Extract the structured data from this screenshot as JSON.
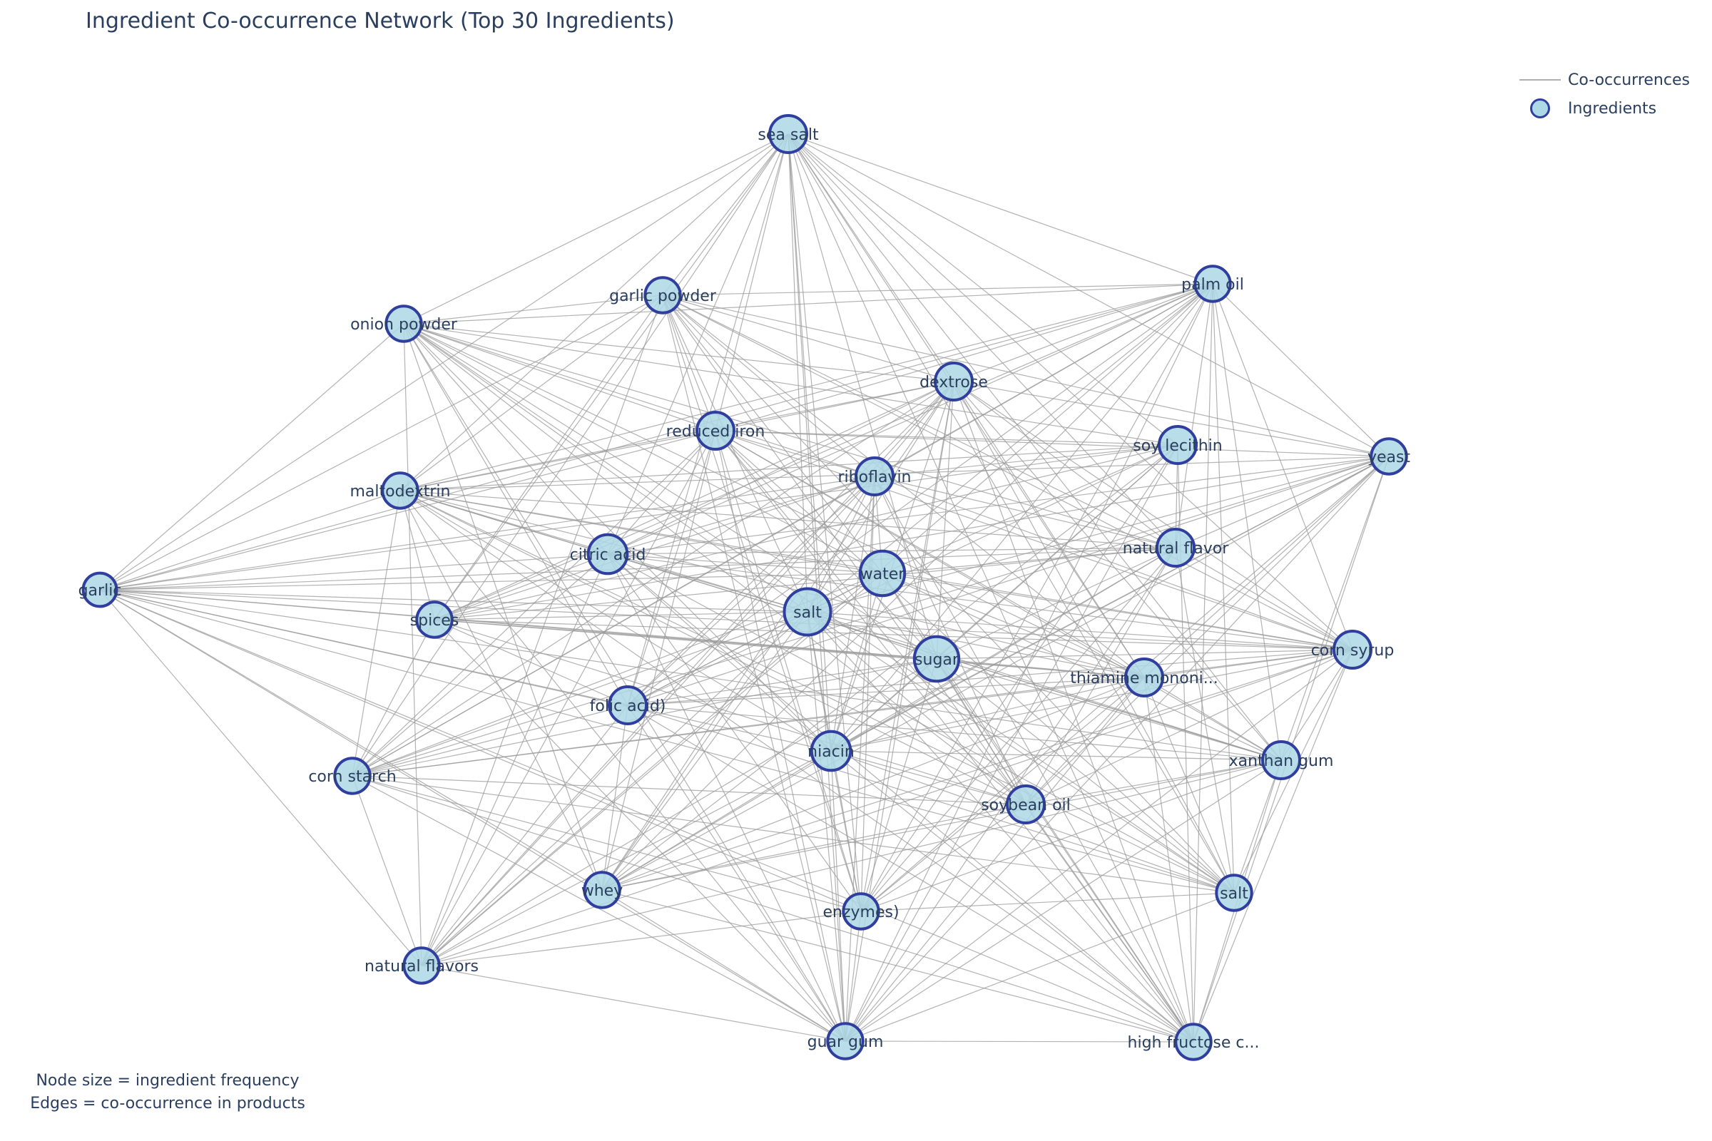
{
  "title": "Ingredient Co-occurrence Network (Top 30 Ingredients)",
  "legend": {
    "edges_label": "Co-occurrences",
    "nodes_label": "Ingredients"
  },
  "footnote": {
    "line1": "Node size = ingredient frequency",
    "line2": "Edges = co-occurrence in products"
  },
  "colors": {
    "node_fill": "#add8e6",
    "node_stroke": "#303f9f",
    "edge": "#999999",
    "text": "#2a3f5f"
  },
  "nodes": [
    {
      "id": "n1",
      "label": "sea salt",
      "weight": 1.0
    },
    {
      "id": "n2",
      "label": "palm oil",
      "weight": 0.95
    },
    {
      "id": "n3",
      "label": "garlic powder",
      "weight": 0.95
    },
    {
      "id": "n4",
      "label": "onion powder",
      "weight": 0.95
    },
    {
      "id": "n5",
      "label": "dextrose",
      "weight": 1.0
    },
    {
      "id": "n6",
      "label": "reduced iron",
      "weight": 1.0
    },
    {
      "id": "n7",
      "label": "soy lecithin",
      "weight": 1.0
    },
    {
      "id": "n8",
      "label": "yeast",
      "weight": 0.95
    },
    {
      "id": "n9",
      "label": "riboflavin",
      "weight": 1.0
    },
    {
      "id": "n10",
      "label": "maltodextrin",
      "weight": 0.95
    },
    {
      "id": "n11",
      "label": "natural flavor",
      "weight": 1.0
    },
    {
      "id": "n12",
      "label": "citric acid",
      "weight": 1.05
    },
    {
      "id": "n13",
      "label": "water",
      "weight": 1.2
    },
    {
      "id": "n14",
      "label": "garlic",
      "weight": 0.9
    },
    {
      "id": "n15",
      "label": "salt",
      "weight": 1.25
    },
    {
      "id": "n16",
      "label": "spices",
      "weight": 0.95
    },
    {
      "id": "n17",
      "label": "sugar",
      "weight": 1.2
    },
    {
      "id": "n18",
      "label": "corn syrup",
      "weight": 1.0
    },
    {
      "id": "n19",
      "label": "thiamine mononi...",
      "weight": 1.0
    },
    {
      "id": "n20",
      "label": "folic acid)",
      "weight": 1.0
    },
    {
      "id": "n21",
      "label": "niacin",
      "weight": 1.05
    },
    {
      "id": "n22",
      "label": "xanthan gum",
      "weight": 1.0
    },
    {
      "id": "n23",
      "label": "corn starch",
      "weight": 0.95
    },
    {
      "id": "n24",
      "label": "soybean oil",
      "weight": 1.0
    },
    {
      "id": "n25",
      "label": "whey",
      "weight": 0.95
    },
    {
      "id": "n26",
      "label": "salt",
      "weight": 0.95
    },
    {
      "id": "n27",
      "label": "enzymes)",
      "weight": 0.95
    },
    {
      "id": "n28",
      "label": "natural flavors",
      "weight": 0.95
    },
    {
      "id": "n29",
      "label": "guar gum",
      "weight": 0.95
    },
    {
      "id": "n30",
      "label": "high fructose c...",
      "weight": 0.95
    }
  ],
  "edges_description": "dense co-occurrence edges between ingredients"
}
